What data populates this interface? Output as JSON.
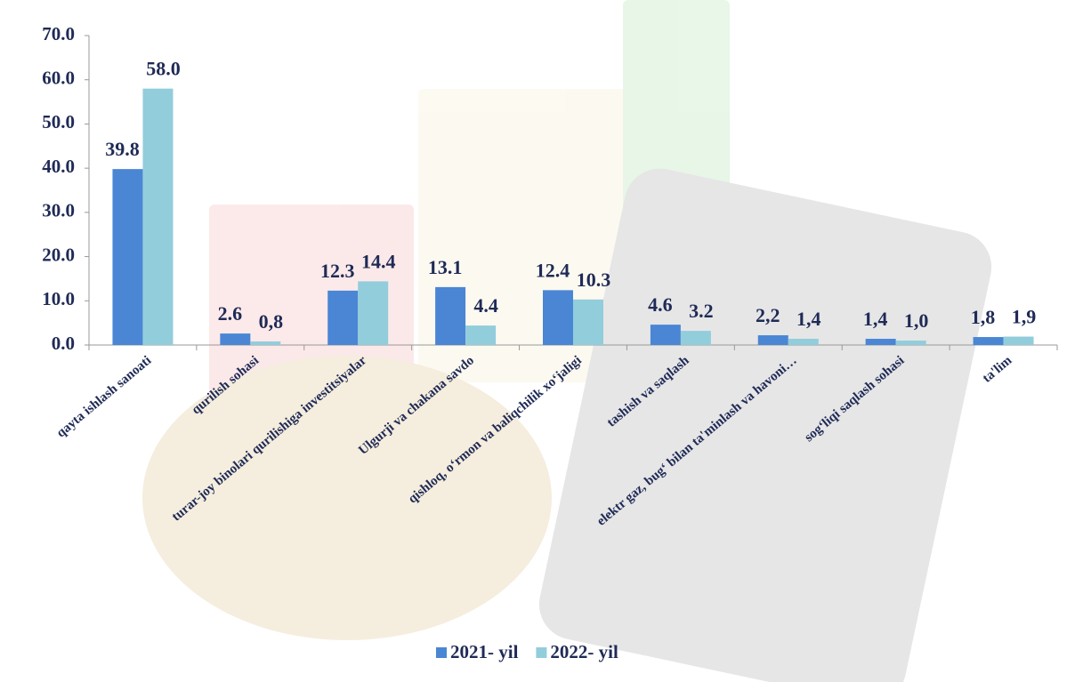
{
  "chart_data": {
    "type": "bar",
    "categories": [
      "qayta ishlash sanoati",
      "qurilish sohasi",
      "turar-joy binolari qurilishiga investitsiyalar",
      "Ulgurji va chakana savdo",
      "qishloq, o‘rmon va baliqchilik xo‘jaligi",
      "tashish va saqlash",
      "elektr gaz, bug‘ bilan ta'minlash va havoni…",
      "sog‘liqi saqlash sohasi",
      "ta'lim"
    ],
    "series": [
      {
        "name": "2021- yil",
        "color": "#4a86d4",
        "values": [
          39.8,
          2.6,
          12.3,
          13.1,
          12.4,
          4.6,
          2.2,
          1.4,
          1.8
        ],
        "value_labels": [
          "39.8",
          "2.6",
          "12.3",
          "13.1",
          "12.4",
          "4.6",
          "2,2",
          "1,4",
          "1,8"
        ]
      },
      {
        "name": "2022- yil",
        "color": "#92cddc",
        "values": [
          58.0,
          0.8,
          14.4,
          4.4,
          10.3,
          3.2,
          1.4,
          1.0,
          1.9
        ],
        "value_labels": [
          "58.0",
          "0,8",
          "14.4",
          "4.4",
          "10.3",
          "3.2",
          "1,4",
          "1,0",
          "1,9"
        ]
      }
    ],
    "ylim": [
      0,
      70
    ],
    "yticks": [
      {
        "value": 0,
        "label": "0.0"
      },
      {
        "value": 10,
        "label": "10.0"
      },
      {
        "value": 20,
        "label": "20.0"
      },
      {
        "value": 30,
        "label": "30.0"
      },
      {
        "value": 40,
        "label": "40.0"
      },
      {
        "value": 50,
        "label": "50.0"
      },
      {
        "value": 60,
        "label": "60.0"
      },
      {
        "value": 70,
        "label": "70.0"
      }
    ],
    "legend": "bottom"
  }
}
